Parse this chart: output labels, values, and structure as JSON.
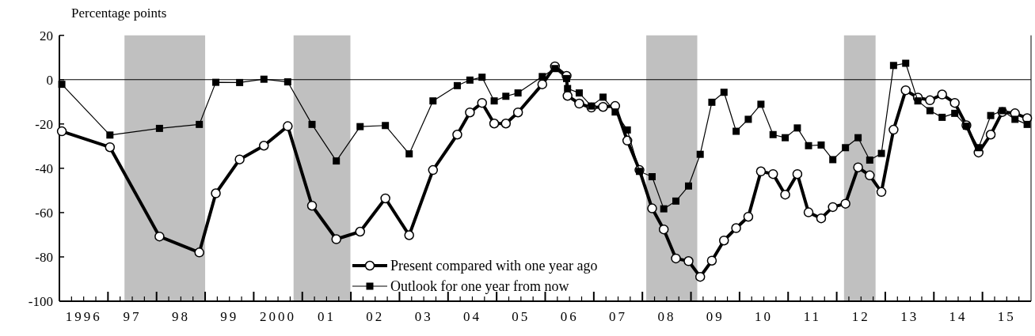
{
  "chart_data": {
    "type": "line",
    "ylabel": "Percentage points",
    "xlim": [
      1995.5,
      2015.5
    ],
    "ylim": [
      -100,
      20
    ],
    "yticks": [
      20,
      0,
      -20,
      -40,
      -60,
      -80,
      -100
    ],
    "xticks": [
      {
        "value": 1995.75,
        "label": null
      },
      {
        "value": 1996,
        "label": "1996"
      },
      {
        "value": 1996.25,
        "label": null
      },
      {
        "value": 1996.5,
        "label": null
      },
      {
        "value": 1996.75,
        "label": null
      },
      {
        "value": 1997,
        "label": "97"
      },
      {
        "value": 1997.25,
        "label": null
      },
      {
        "value": 1997.5,
        "label": null
      },
      {
        "value": 1997.75,
        "label": null
      },
      {
        "value": 1998,
        "label": "98"
      },
      {
        "value": 1998.25,
        "label": null
      },
      {
        "value": 1998.5,
        "label": null
      },
      {
        "value": 1998.75,
        "label": null
      },
      {
        "value": 1999,
        "label": "99"
      },
      {
        "value": 1999.25,
        "label": null
      },
      {
        "value": 1999.5,
        "label": null
      },
      {
        "value": 1999.75,
        "label": null
      },
      {
        "value": 2000,
        "label": "2000"
      },
      {
        "value": 2000.25,
        "label": null
      },
      {
        "value": 2000.5,
        "label": null
      },
      {
        "value": 2000.75,
        "label": null
      },
      {
        "value": 2001,
        "label": "01"
      },
      {
        "value": 2001.25,
        "label": null
      },
      {
        "value": 2001.5,
        "label": null
      },
      {
        "value": 2001.75,
        "label": null
      },
      {
        "value": 2002,
        "label": "02"
      },
      {
        "value": 2002.25,
        "label": null
      },
      {
        "value": 2002.5,
        "label": null
      },
      {
        "value": 2002.75,
        "label": null
      },
      {
        "value": 2003,
        "label": "03"
      },
      {
        "value": 2003.25,
        "label": null
      },
      {
        "value": 2003.5,
        "label": null
      },
      {
        "value": 2003.75,
        "label": null
      },
      {
        "value": 2004,
        "label": "04"
      },
      {
        "value": 2004.25,
        "label": null
      },
      {
        "value": 2004.5,
        "label": null
      },
      {
        "value": 2004.75,
        "label": null
      },
      {
        "value": 2005,
        "label": "05"
      },
      {
        "value": 2005.25,
        "label": null
      },
      {
        "value": 2005.5,
        "label": null
      },
      {
        "value": 2005.75,
        "label": null
      },
      {
        "value": 2006,
        "label": "06"
      },
      {
        "value": 2006.25,
        "label": null
      },
      {
        "value": 2006.5,
        "label": null
      },
      {
        "value": 2006.75,
        "label": null
      },
      {
        "value": 2007,
        "label": "07"
      },
      {
        "value": 2007.25,
        "label": null
      },
      {
        "value": 2007.5,
        "label": null
      },
      {
        "value": 2007.75,
        "label": null
      },
      {
        "value": 2008,
        "label": "08"
      },
      {
        "value": 2008.25,
        "label": null
      },
      {
        "value": 2008.5,
        "label": null
      },
      {
        "value": 2008.75,
        "label": null
      },
      {
        "value": 2009,
        "label": "09"
      },
      {
        "value": 2009.25,
        "label": null
      },
      {
        "value": 2009.5,
        "label": null
      },
      {
        "value": 2009.75,
        "label": null
      },
      {
        "value": 2010,
        "label": "10"
      },
      {
        "value": 2010.25,
        "label": null
      },
      {
        "value": 2010.5,
        "label": null
      },
      {
        "value": 2010.75,
        "label": null
      },
      {
        "value": 2011,
        "label": "11"
      },
      {
        "value": 2011.25,
        "label": null
      },
      {
        "value": 2011.5,
        "label": null
      },
      {
        "value": 2011.75,
        "label": null
      },
      {
        "value": 2012,
        "label": "12"
      },
      {
        "value": 2012.25,
        "label": null
      },
      {
        "value": 2012.5,
        "label": null
      },
      {
        "value": 2012.75,
        "label": null
      },
      {
        "value": 2013,
        "label": "13"
      },
      {
        "value": 2013.25,
        "label": null
      },
      {
        "value": 2013.5,
        "label": null
      },
      {
        "value": 2013.75,
        "label": null
      },
      {
        "value": 2014,
        "label": "14"
      },
      {
        "value": 2014.25,
        "label": null
      },
      {
        "value": 2014.5,
        "label": null
      },
      {
        "value": 2014.75,
        "label": null
      },
      {
        "value": 2015,
        "label": "15"
      },
      {
        "value": 2015.25,
        "label": null
      }
    ],
    "legend": "bottom",
    "line_style": "solid",
    "ref_lines": [
      {
        "axis": "y",
        "value": 0,
        "color": "#000000"
      }
    ],
    "bands": [
      {
        "axis": "x",
        "from": 1996.84,
        "to": 1998.5,
        "color": "#c0c0c0"
      },
      {
        "axis": "x",
        "from": 2000.32,
        "to": 2001.49,
        "color": "#c0c0c0"
      },
      {
        "axis": "x",
        "from": 2007.58,
        "to": 2008.63,
        "color": "#c0c0c0"
      },
      {
        "axis": "x",
        "from": 2011.65,
        "to": 2012.3,
        "color": "#c0c0c0"
      }
    ],
    "series": [
      {
        "name": "Present compared with one year ago",
        "color": "#000000",
        "marker": "circle",
        "x": [
          1995.55,
          1996.54,
          1997.56,
          1998.38,
          1998.72,
          1999.21,
          1999.71,
          2000.2,
          2000.7,
          2001.2,
          2001.69,
          2002.21,
          2002.7,
          2003.19,
          2003.69,
          2003.95,
          2004.2,
          2004.45,
          2004.69,
          2004.94,
          2005.44,
          2005.7,
          2005.94,
          2005.96,
          2006.2,
          2006.45,
          2006.69,
          2006.94,
          2007.19,
          2007.44,
          2007.7,
          2007.94,
          2008.19,
          2008.45,
          2008.69,
          2008.93,
          2009.18,
          2009.43,
          2009.68,
          2009.94,
          2010.19,
          2010.44,
          2010.69,
          2010.92,
          2011.18,
          2011.42,
          2011.68,
          2011.94,
          2012.18,
          2012.42,
          2012.67,
          2012.92,
          2013.17,
          2013.42,
          2013.67,
          2013.93,
          2014.17,
          2014.42,
          2014.67,
          2014.91,
          2015.17,
          2015.42
        ],
        "values": [
          -23.3,
          -30.5,
          -70.8,
          -78,
          -51.3,
          -36,
          -29.8,
          -21,
          -56.9,
          -72,
          -68.6,
          -53.6,
          -70.2,
          -40.8,
          -24.8,
          -14.8,
          -10.5,
          -19.8,
          -19.8,
          -14.8,
          -2.1,
          6,
          1.7,
          -7.3,
          -10.8,
          -12.6,
          -12.3,
          -11.9,
          -27.5,
          -40.8,
          -58.1,
          -67.6,
          -80.7,
          -81.9,
          -89,
          -81.7,
          -72.6,
          -67,
          -61.9,
          -41.4,
          -42.6,
          -51.9,
          -42.6,
          -59.9,
          -62.6,
          -57.5,
          -56,
          -39.6,
          -43.2,
          -50.7,
          -22.6,
          -4.8,
          -8.1,
          -9.3,
          -6.7,
          -10.5,
          -20.6,
          -32.9,
          -24.8,
          -14.6,
          -15.2,
          -17.4
        ]
      },
      {
        "name": "Outlook for one year from now",
        "color": "#000000",
        "marker": "square",
        "x": [
          1995.55,
          1996.54,
          1997.56,
          1998.38,
          1998.72,
          1999.21,
          1999.71,
          2000.2,
          2000.7,
          2001.2,
          2001.69,
          2002.21,
          2002.7,
          2003.19,
          2003.69,
          2003.95,
          2004.2,
          2004.45,
          2004.69,
          2004.94,
          2005.44,
          2005.7,
          2005.94,
          2005.96,
          2006.2,
          2006.45,
          2006.69,
          2006.94,
          2007.19,
          2007.44,
          2007.7,
          2007.94,
          2008.19,
          2008.45,
          2008.69,
          2008.93,
          2009.18,
          2009.43,
          2009.68,
          2009.94,
          2010.19,
          2010.44,
          2010.69,
          2010.92,
          2011.18,
          2011.42,
          2011.68,
          2011.94,
          2012.18,
          2012.42,
          2012.67,
          2012.92,
          2013.17,
          2013.42,
          2013.67,
          2013.93,
          2014.17,
          2014.42,
          2014.67,
          2014.91,
          2015.17,
          2015.42
        ],
        "values": [
          -2.1,
          -25,
          -22,
          -20.2,
          -1.2,
          -1.3,
          0.2,
          -1,
          -20.2,
          -36.7,
          -21.2,
          -20.7,
          -33.5,
          -9.6,
          -2.7,
          -0.2,
          1.1,
          -9.6,
          -7.5,
          -6,
          1.4,
          5,
          0.5,
          -4,
          -6,
          -11.9,
          -7.9,
          -14.6,
          -22.7,
          -41.4,
          -43.8,
          -58.3,
          -54.8,
          -48,
          -33.7,
          -10.2,
          -5.7,
          -23.3,
          -17.9,
          -11.1,
          -24.8,
          -26.2,
          -21.8,
          -29.8,
          -29.5,
          -36.1,
          -30.7,
          -26.2,
          -36.3,
          -33.3,
          6.4,
          7.4,
          -9.6,
          -14,
          -17,
          -15.2,
          -21,
          -30.7,
          -16.2,
          -14,
          -17.9,
          -20.2
        ]
      }
    ]
  }
}
